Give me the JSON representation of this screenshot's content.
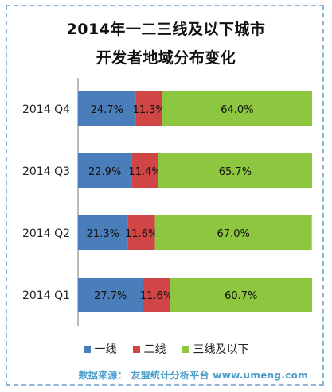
{
  "title_line1": "2014年一二三线及以下城市",
  "title_line2": "开发者地域分布变化",
  "source": "数据来源： 友盟统计分析平台 www.umeng.com",
  "chart_data": {
    "type": "bar",
    "orientation": "horizontal",
    "stacked": true,
    "categories": [
      "2014 Q4",
      "2014 Q3",
      "2014 Q2",
      "2014 Q1"
    ],
    "series": [
      {
        "name": "一线",
        "values": [
          24.7,
          22.9,
          21.3,
          27.7
        ],
        "labels": [
          "24.7%",
          "22.9%",
          "21.3%",
          "27.7%"
        ],
        "color": "#4a7ebb"
      },
      {
        "name": "二线",
        "values": [
          11.3,
          11.4,
          11.6,
          11.6
        ],
        "labels": [
          "11.3%",
          "11.4%",
          "11.6%",
          "11.6%"
        ],
        "color": "#d04545"
      },
      {
        "name": "三线及以下",
        "values": [
          64.0,
          65.7,
          67.0,
          60.7
        ],
        "labels": [
          "64.0%",
          "65.7%",
          "67.0%",
          "60.7%"
        ],
        "color": "#8dc63f"
      }
    ],
    "xlim": [
      0,
      100
    ],
    "grid": false,
    "legend_position": "bottom"
  }
}
